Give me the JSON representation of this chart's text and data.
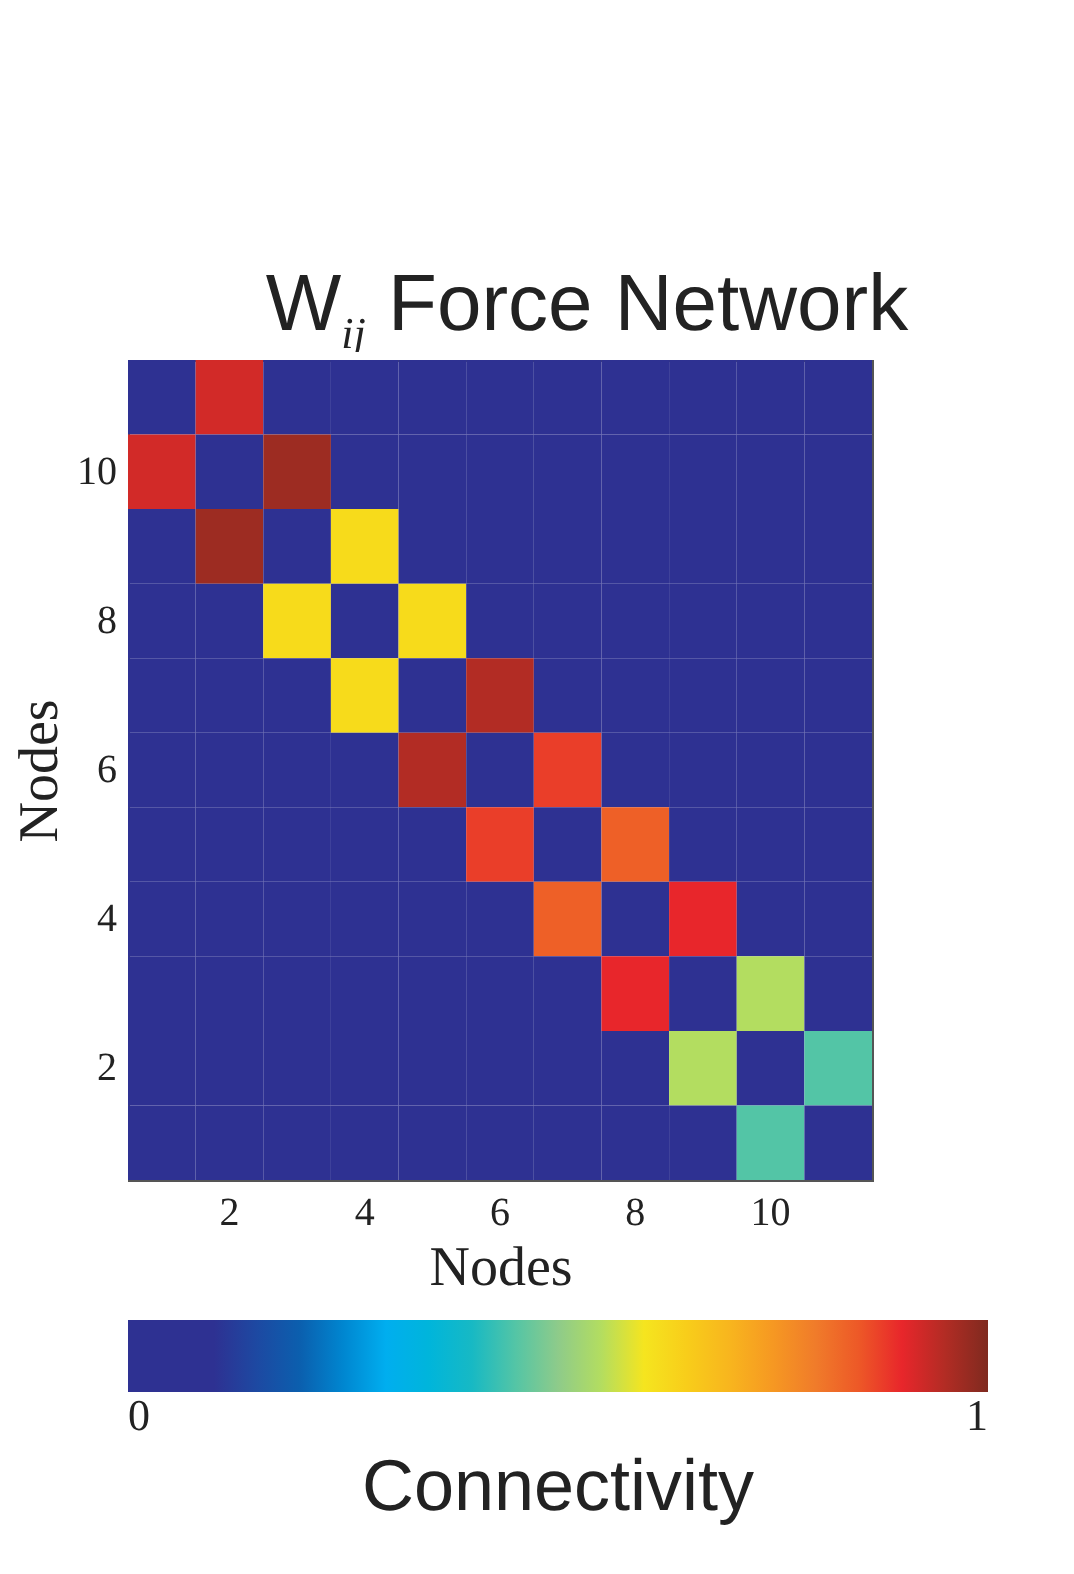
{
  "chart_data": {
    "type": "heatmap",
    "title": "W$_{ij}$ Force Network",
    "xlabel": "Nodes",
    "ylabel": "Nodes",
    "clabel": "Connectivity",
    "categories": [
      null,
      "2",
      null,
      "4",
      null,
      "6",
      null,
      "8",
      null,
      "10",
      null
    ],
    "y_categories": [
      null,
      "10",
      null,
      "8",
      null,
      "6",
      null,
      "4",
      null,
      "2",
      null
    ],
    "cells": [
      [
        0,
        0.92,
        0,
        0,
        0,
        0,
        0,
        0,
        0,
        0,
        0
      ],
      [
        0.92,
        0,
        0.97,
        0,
        0,
        0,
        0,
        0,
        0,
        0,
        0
      ],
      [
        0,
        0.97,
        0,
        0.62,
        0,
        0,
        0,
        0,
        0,
        0,
        0
      ],
      [
        0,
        0,
        0.62,
        0,
        0.62,
        0,
        0,
        0,
        0,
        0,
        0
      ],
      [
        0,
        0,
        0,
        0.62,
        0,
        0.95,
        0,
        0,
        0,
        0,
        0
      ],
      [
        0,
        0,
        0,
        0,
        0.95,
        0,
        0.88,
        0,
        0,
        0,
        0
      ],
      [
        0,
        0,
        0,
        0,
        0,
        0.88,
        0,
        0.84,
        0,
        0,
        0
      ],
      [
        0,
        0,
        0,
        0,
        0,
        0,
        0.84,
        0,
        0.9,
        0,
        0
      ],
      [
        0,
        0,
        0,
        0,
        0,
        0,
        0,
        0.9,
        0,
        0.55,
        0
      ],
      [
        0,
        0,
        0,
        0,
        0,
        0,
        0,
        0,
        0.55,
        0,
        0.45
      ],
      [
        0,
        0,
        0,
        0,
        0,
        0,
        0,
        0,
        0,
        0.45,
        0
      ]
    ],
    "clim": [
      0,
      1
    ],
    "cticks": [
      0,
      1
    ],
    "grid": false
  }
}
